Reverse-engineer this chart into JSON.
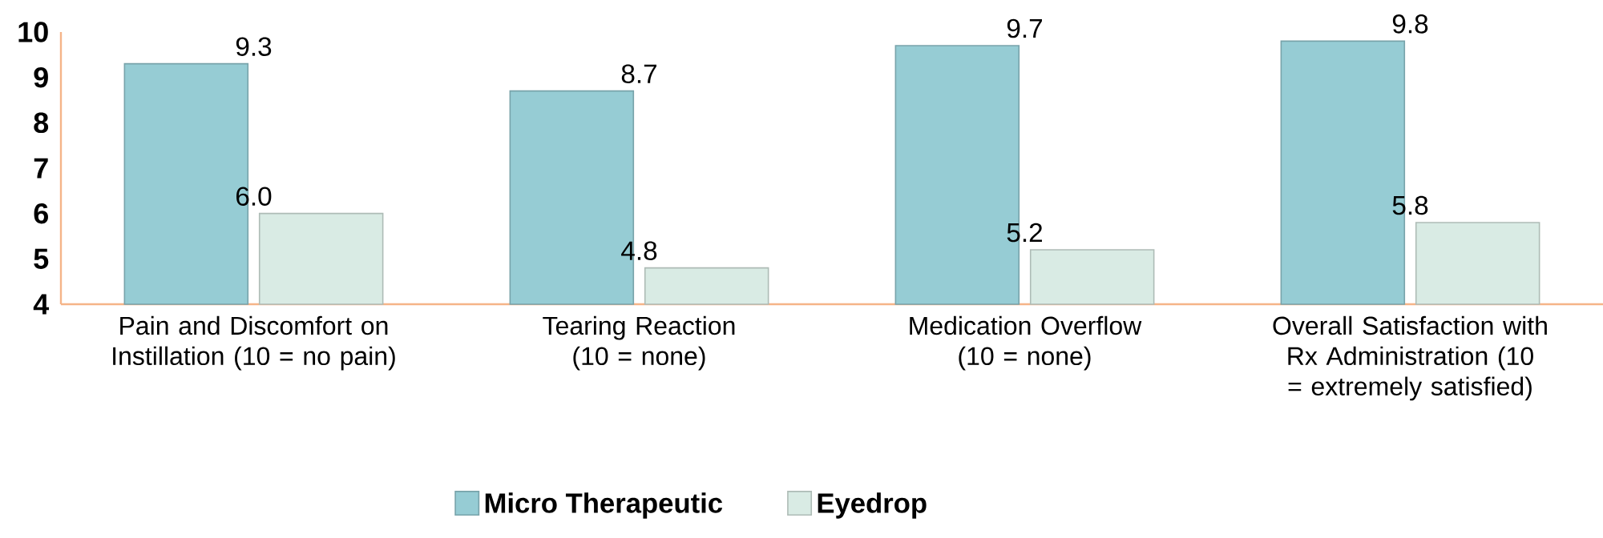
{
  "chart_data": {
    "type": "bar",
    "categories": [
      "Pain and Discomfort on Instillation (10 = no pain)",
      "Tearing Reaction (10 = none)",
      "Medication Overflow (10 = none)",
      "Overall Satisfaction with Rx Administration (10 = extremely satisfied)"
    ],
    "series": [
      {
        "name": "Micro Therapeutic",
        "color": "#96ccd4",
        "values": [
          9.3,
          8.7,
          9.7,
          9.8
        ],
        "value_labels": [
          "9.3",
          "8.7",
          "9.7",
          "9.8"
        ]
      },
      {
        "name": "Eyedrop",
        "color": "#d9ebe4",
        "values": [
          6.0,
          4.8,
          5.2,
          5.8
        ],
        "value_labels": [
          "6.0",
          "4.8",
          "5.2",
          "5.8"
        ]
      }
    ],
    "ylim": [
      4,
      10
    ],
    "yticks": [
      4,
      5,
      6,
      7,
      8,
      9,
      10
    ],
    "grid": false,
    "legend": "bottom"
  }
}
